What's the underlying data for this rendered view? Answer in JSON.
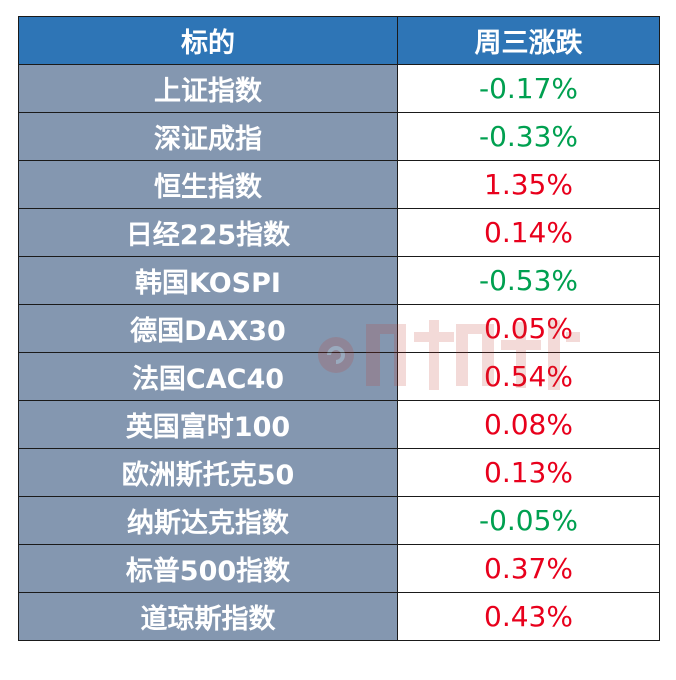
{
  "table": {
    "headers": [
      "标的",
      "周三涨跌"
    ],
    "rows": [
      {
        "name": "上证指数",
        "change": "-0.17%",
        "direction": "down"
      },
      {
        "name": "深证成指",
        "change": "-0.33%",
        "direction": "down"
      },
      {
        "name": "恒生指数",
        "change": "1.35%",
        "direction": "up"
      },
      {
        "name": "日经225指数",
        "change": "0.14%",
        "direction": "up"
      },
      {
        "name": "韩国KOSPI",
        "change": "-0.53%",
        "direction": "down"
      },
      {
        "name": "德国DAX30",
        "change": "0.05%",
        "direction": "up"
      },
      {
        "name": "法国CAC40",
        "change": "0.54%",
        "direction": "up"
      },
      {
        "name": "英国富时100",
        "change": "0.08%",
        "direction": "up"
      },
      {
        "name": "欧洲斯托克50",
        "change": "0.13%",
        "direction": "up"
      },
      {
        "name": "纳斯达克指数",
        "change": "-0.05%",
        "direction": "down"
      },
      {
        "name": "标普500指数",
        "change": "0.37%",
        "direction": "up"
      },
      {
        "name": "道琼斯指数",
        "change": "0.43%",
        "direction": "up"
      }
    ]
  },
  "colors": {
    "header_bg": "#2e75b6",
    "name_bg": "#8497b0",
    "up": "#e8001c",
    "down": "#00a050"
  },
  "watermark": {
    "text": "财联社",
    "icon": "cls-logo-icon"
  }
}
